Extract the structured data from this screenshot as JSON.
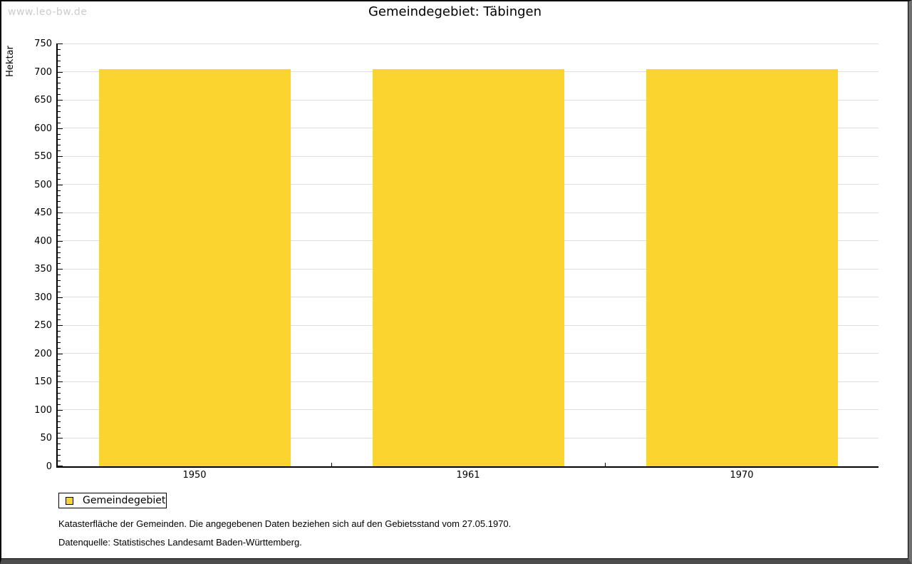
{
  "watermark": "www.leo-bw.de",
  "title": "Gemeindegebiet: Täbingen",
  "y_axis_title": "Hektar",
  "legend": {
    "label": "Gemeindegebiet",
    "swatch_color": "#fcd42f"
  },
  "footnotes": {
    "line1": "Katasterfläche der Gemeinden. Die angegebenen Daten beziehen sich auf den Gebietsstand vom 27.05.1970.",
    "line2": "Datenquelle: Statistisches Landesamt Baden-Württemberg."
  },
  "colors": {
    "bar": "#fcd42f",
    "gridline": "#dedede",
    "axis": "#000000",
    "watermark": "#cccccc"
  },
  "chart_data": {
    "type": "bar",
    "title": "Gemeindegebiet: Täbingen",
    "categories": [
      "1950",
      "1961",
      "1970"
    ],
    "series": [
      {
        "name": "Gemeindegebiet",
        "values": [
          704,
          704,
          704
        ]
      }
    ],
    "xlabel": "",
    "ylabel": "Hektar",
    "ylim": [
      0,
      750
    ],
    "y_major_step": 50,
    "y_minor_step": 10,
    "grid": "horizontal-major",
    "legend_position": "bottom-left",
    "bar_color": "#fcd42f"
  }
}
